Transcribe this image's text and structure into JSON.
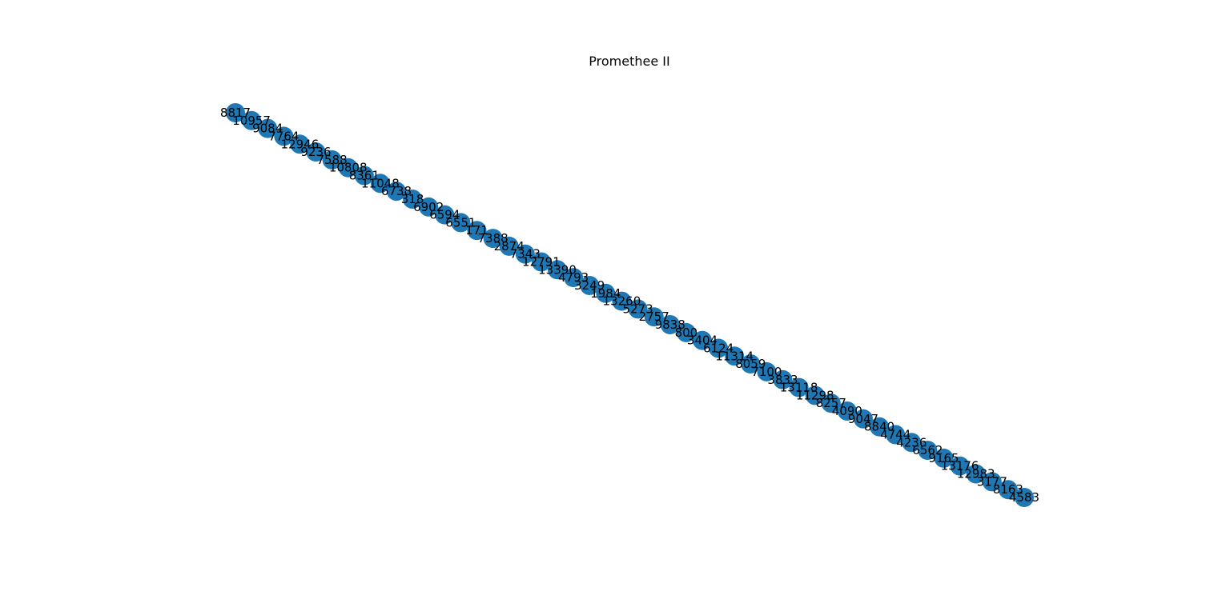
{
  "title": "Promethee II",
  "colors": {
    "node": "#1f77b4",
    "label": "#000000",
    "background": "#ffffff"
  },
  "graph": {
    "layout": "chain",
    "nodes": [
      "8817",
      "10957",
      "9084",
      "7764",
      "12946",
      "9236",
      "7588",
      "10808",
      "8361",
      "11048",
      "6738",
      "318",
      "6902",
      "6594",
      "6551",
      "171",
      "7388",
      "2874",
      "7343",
      "12791",
      "13390",
      "4793",
      "3249",
      "1984",
      "13260",
      "5273",
      "2757",
      "9838",
      "800",
      "3404",
      "6124",
      "11314",
      "8059",
      "7100",
      "3833",
      "13118",
      "11298",
      "8257",
      "4090",
      "9047",
      "8840",
      "4744",
      "4236",
      "6562",
      "9165",
      "13176",
      "12983",
      "3177",
      "8163",
      "4583"
    ]
  }
}
